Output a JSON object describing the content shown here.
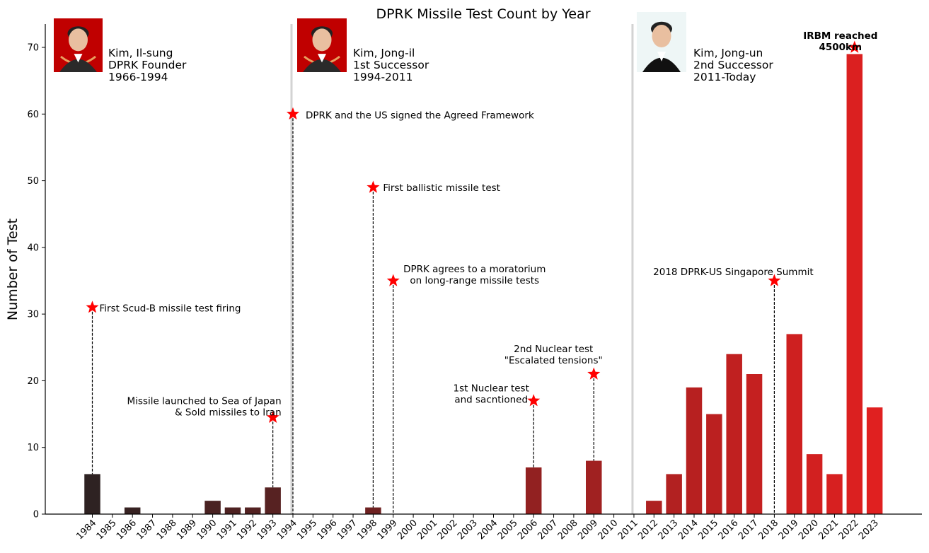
{
  "chart_data": {
    "type": "bar",
    "title": "DPRK Missile Test Count by Year",
    "xlabel": "",
    "ylabel": "Number of Test",
    "ylim": [
      0,
      73.5
    ],
    "yticks": [
      0,
      10,
      20,
      30,
      40,
      50,
      60,
      70
    ],
    "grid": false,
    "categories": [
      "1984",
      "1985",
      "1986",
      "1987",
      "1988",
      "1989",
      "1990",
      "1991",
      "1992",
      "1993",
      "1994",
      "1995",
      "1996",
      "1997",
      "1998",
      "1999",
      "2000",
      "2001",
      "2002",
      "2003",
      "2004",
      "2005",
      "2006",
      "2007",
      "2008",
      "2009",
      "2010",
      "2011",
      "2012",
      "2013",
      "2014",
      "2015",
      "2016",
      "2017",
      "2018",
      "2019",
      "2020",
      "2021",
      "2022",
      "2023"
    ],
    "values": [
      6,
      0,
      1,
      0,
      0,
      0,
      2,
      1,
      1,
      4,
      0,
      0,
      0,
      0,
      1,
      0,
      0,
      0,
      0,
      0,
      0,
      0,
      7,
      0,
      0,
      8,
      0,
      0,
      2,
      6,
      19,
      15,
      24,
      21,
      0,
      27,
      9,
      6,
      69,
      16
    ],
    "bar_color_start": "#2e2222",
    "bar_color_end": "#e02020",
    "era_dividers": [
      "1994",
      "2011"
    ],
    "divider_color": "#d3d3d3",
    "marker_color": "#ff0000",
    "leaders": [
      {
        "name": "Kim, Il-sung",
        "role": "DPRK Founder",
        "years": "1966-1994",
        "icon": "leader-portrait-icon",
        "background": "#c00000"
      },
      {
        "name": "Kim, Jong-il",
        "role": "1st Successor",
        "years": "1994-2011",
        "icon": "leader-portrait-icon",
        "background": "#c00000"
      },
      {
        "name": "Kim, Jong-un",
        "role": "2nd Successor",
        "years": "2011-Today",
        "icon": "leader-portrait-icon",
        "background": "#eef6f6"
      }
    ],
    "annotations": [
      {
        "year": "1984",
        "y": 31,
        "lines": [
          "First Scud-B missile test firing"
        ],
        "bold": false
      },
      {
        "year": "1993",
        "y": 14.5,
        "lines": [
          "Missile launched to Sea of Japan",
          "& Sold missiles to Iran"
        ],
        "bold": false
      },
      {
        "year": "1994",
        "y": 60,
        "lines": [
          "DPRK and the US signed the Agreed Framework"
        ],
        "bold": false
      },
      {
        "year": "1998",
        "y": 49,
        "lines": [
          "First ballistic missile test"
        ],
        "bold": false
      },
      {
        "year": "1999",
        "y": 35,
        "lines": [
          "DPRK agrees to a moratorium",
          "on long-range missile tests"
        ],
        "bold": false
      },
      {
        "year": "2006",
        "y": 17,
        "lines": [
          "1st Nuclear test",
          "and sacntioned"
        ],
        "bold": false
      },
      {
        "year": "2009",
        "y": 21,
        "lines": [
          "2nd Nuclear test",
          "\"Escalated tensions\""
        ],
        "bold": false
      },
      {
        "year": "2018",
        "y": 35,
        "lines": [
          "2018 DPRK-US Singapore Summit"
        ],
        "bold": false
      },
      {
        "year": "2022",
        "y": 70,
        "lines": [
          "IRBM reached",
          "4500km"
        ],
        "bold": true
      }
    ]
  }
}
